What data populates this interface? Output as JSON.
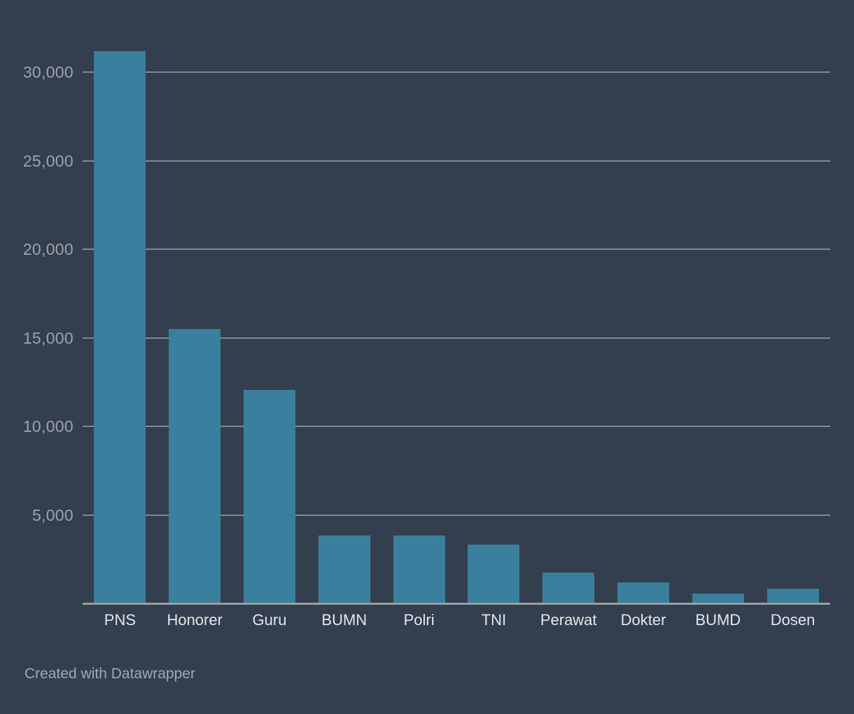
{
  "chart_data": {
    "type": "bar",
    "categories": [
      "PNS",
      "Honorer",
      "Guru",
      "BUMN",
      "Polri",
      "TNI",
      "Perawat",
      "Dokter",
      "BUMD",
      "Dosen"
    ],
    "values": [
      31200,
      15500,
      12050,
      3850,
      3850,
      3330,
      1750,
      1180,
      540,
      820
    ],
    "title": "",
    "xlabel": "",
    "ylabel": "",
    "ylim": [
      0,
      31600
    ],
    "yticks": [
      5000,
      10000,
      15000,
      20000,
      25000,
      30000
    ],
    "ytick_labels": [
      "5,000",
      "10,000",
      "15,000",
      "20,000",
      "25,000",
      "30,000"
    ],
    "grid": true,
    "legend": false,
    "bar_gap_ratio": 0.31
  },
  "colors": {
    "background": "#333e4e",
    "bar": "#3a7f9d",
    "gridline": "#85898d",
    "baseline": "#9a9da1",
    "ytick_text": "#9ca3ab",
    "xtick_text": "#e4e7ea",
    "footer_text": "#a2a8af"
  },
  "footer": {
    "credit": "Created with Datawrapper"
  }
}
